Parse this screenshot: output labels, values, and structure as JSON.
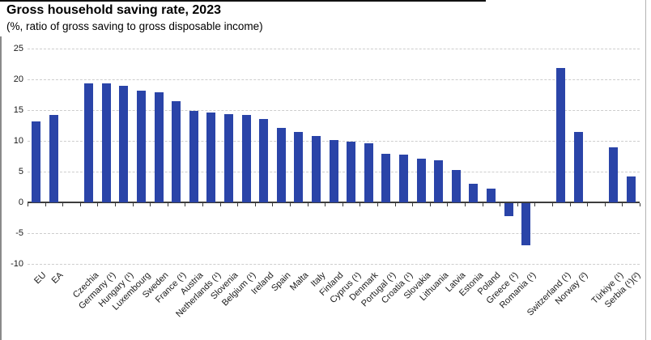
{
  "header": {
    "title": "Gross household saving rate, 2023",
    "subtitle": "(%, ratio of gross saving to gross disposable income)"
  },
  "chart_data": {
    "type": "bar",
    "title": "Gross household saving rate, 2023",
    "subtitle": "(%, ratio of gross saving to gross disposable income)",
    "xlabel": "",
    "ylabel": "%",
    "ylim": [
      -10,
      25
    ],
    "yticks": [
      25,
      20,
      15,
      10,
      5,
      0,
      -5,
      -10
    ],
    "grid": "horizontal-dashed",
    "legend": "none",
    "bar_color": "#2a44a8",
    "total_slots": 35,
    "points": [
      {
        "label": "EU",
        "value": 13.1,
        "slot": 0
      },
      {
        "label": "EA",
        "value": 14.2,
        "slot": 1
      },
      {
        "label": "Czechia",
        "value": 19.4,
        "slot": 3
      },
      {
        "label": "Germany (¹)",
        "value": 19.3,
        "slot": 4
      },
      {
        "label": "Hungary (¹)",
        "value": 18.9,
        "slot": 5
      },
      {
        "label": "Luxembourg",
        "value": 18.1,
        "slot": 6
      },
      {
        "label": "Sweden",
        "value": 17.9,
        "slot": 7
      },
      {
        "label": "France (¹)",
        "value": 16.4,
        "slot": 8
      },
      {
        "label": "Austria",
        "value": 14.9,
        "slot": 9
      },
      {
        "label": "Netherlands (¹)",
        "value": 14.6,
        "slot": 10
      },
      {
        "label": "Slovenia",
        "value": 14.3,
        "slot": 11
      },
      {
        "label": "Belgium (¹)",
        "value": 14.2,
        "slot": 12
      },
      {
        "label": "Ireland",
        "value": 13.6,
        "slot": 13
      },
      {
        "label": "Spain",
        "value": 12.1,
        "slot": 14
      },
      {
        "label": "Malta",
        "value": 11.4,
        "slot": 15
      },
      {
        "label": "Italy",
        "value": 10.8,
        "slot": 16
      },
      {
        "label": "Finland",
        "value": 10.1,
        "slot": 17
      },
      {
        "label": "Cyprus (¹)",
        "value": 9.9,
        "slot": 18
      },
      {
        "label": "Denmark",
        "value": 9.6,
        "slot": 19
      },
      {
        "label": "Portugal (¹)",
        "value": 7.9,
        "slot": 20
      },
      {
        "label": "Croatia (¹)",
        "value": 7.8,
        "slot": 21
      },
      {
        "label": "Slovakia",
        "value": 7.1,
        "slot": 22
      },
      {
        "label": "Lithuania",
        "value": 6.8,
        "slot": 23
      },
      {
        "label": "Latvia",
        "value": 5.2,
        "slot": 24
      },
      {
        "label": "Estonia",
        "value": 3.0,
        "slot": 25
      },
      {
        "label": "Poland",
        "value": 2.3,
        "slot": 26
      },
      {
        "label": "Greece (¹)",
        "value": -2.1,
        "slot": 27
      },
      {
        "label": "Romania (¹)",
        "value": -6.9,
        "slot": 28
      },
      {
        "label": "Switzerland (¹)",
        "value": 21.9,
        "slot": 30
      },
      {
        "label": "Norway (²)",
        "value": 11.4,
        "slot": 31
      },
      {
        "label": "Türkiye (¹)",
        "value": 9.0,
        "slot": 33
      },
      {
        "label": "Serbia (¹)(²)",
        "value": 4.2,
        "slot": 34
      }
    ]
  }
}
